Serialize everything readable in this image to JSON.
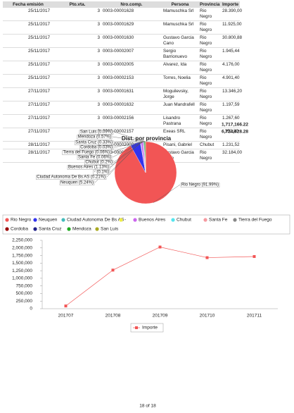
{
  "table": {
    "headers": [
      "Fecha emisión",
      "Pto.vta.",
      "Nro.comp.",
      "Persona",
      "Provincia",
      "Importe"
    ],
    "rows": [
      [
        "25/11/2017",
        "3",
        "0003-00001628",
        "Mamuschka Srl",
        "Rio Negro",
        "28.390,00"
      ],
      [
        "25/11/2017",
        "3",
        "0003-00001629",
        "Mamuschka Srl",
        "Rio Negro",
        "11.925,00"
      ],
      [
        "25/11/2017",
        "3",
        "0003-00001630",
        "Gustavo Garcia Cano",
        "Rio Negro",
        "30.800,88"
      ],
      [
        "25/11/2017",
        "3",
        "0003-00002007",
        "Sergio Barrionuevo",
        "Rio Negro",
        "1.945,44"
      ],
      [
        "25/11/2017",
        "3",
        "0003-00002005",
        "Alvarez, Ida",
        "Rio Negro",
        "4.176,00"
      ],
      [
        "25/11/2017",
        "3",
        "0003-00002153",
        "Torres, Noelia",
        "Rio Negro",
        "4.901,40"
      ],
      [
        "27/11/2017",
        "3",
        "0003-00001631",
        "Moguilevsky, Jorge",
        "Rio Negro",
        "13.346,20"
      ],
      [
        "27/11/2017",
        "3",
        "0003-00001632",
        "Juan Mandrafell",
        "Rio Negro",
        "1.197,59"
      ],
      [
        "27/11/2017",
        "3",
        "0003-00002156",
        "Lisandro Pastrana",
        "Rio Negro",
        "1.267,60"
      ],
      [
        "27/11/2017",
        "3",
        "0003-00002157",
        "Exeas SRL",
        "Rio Negro",
        "352,80"
      ],
      [
        "28/11/2017",
        "3",
        "0003-00002000",
        "Pisani, Gabriel",
        "Chubut",
        "1.231,52"
      ],
      [
        "28/11/2017",
        "3",
        "0003-00002158",
        "Gustavo Garcia Cano",
        "Rio Negro",
        "32.184,00"
      ]
    ],
    "totals": [
      "1,717,166.22",
      "6,724,628.28"
    ]
  },
  "chart_data": [
    {
      "type": "pie",
      "title": "Dist. por provincia",
      "categories": [
        "Rio Negro",
        "Neuquen",
        "Ciudad Autonoma De Bs AS",
        "-",
        "Buenos Aires",
        "Chubut",
        "Santa Fe",
        "Tierra del Fuego",
        "Cordoba",
        "Santa Cruz",
        "Mendoza",
        "San Luis"
      ],
      "values": [
        91.99,
        5.24,
        0.21,
        0.1,
        1.13,
        0.2,
        0.06,
        0.06,
        0.03,
        0.33,
        0.57,
        0.09
      ],
      "value_labels": [
        "Rio Negro (91.99%)",
        "Neuquen (5.24%)",
        "Ciudad Autonoma De Bs AS (0.21%)",
        "- (0.1%)",
        "Buenos Aires (1.13%)",
        "Chubut (0.2%)",
        "Santa Fe (0.06%)",
        "Tierra del Fuego (0.06%)",
        "Cordoba (0.03%)",
        "Santa Cruz (0.33%)",
        "Mendoza (0.57%)",
        "San Luis (0.09%)"
      ],
      "colors": [
        "#f25555",
        "#3333ee",
        "#44bbbb",
        "#eeee44",
        "#cc66ee",
        "#55e5ee",
        "#f59aa0",
        "#888888",
        "#990000",
        "#222288",
        "#22aa22",
        "#aaaa22"
      ]
    },
    {
      "type": "line",
      "categories": [
        "201707",
        "201708",
        "201709",
        "201710",
        "201711"
      ],
      "series": [
        {
          "name": "Importe",
          "color": "#f25555",
          "values": [
            90000,
            1270000,
            2030000,
            1680000,
            1717166.22
          ]
        }
      ],
      "ylim": [
        0,
        2250000
      ],
      "yticks": [
        0,
        {
          "value": 250000,
          "label": "250,000"
        },
        {
          "value": 500000,
          "label": "500,000"
        },
        {
          "value": 750000,
          "label": "750,000"
        },
        {
          "value": 1000000,
          "label": "1,000,000"
        },
        {
          "value": 1250000,
          "label": "1,250,000"
        },
        {
          "value": 1500000,
          "label": "1,500,000"
        },
        {
          "value": 1750000,
          "label": "1,750,000"
        },
        {
          "value": 2000000,
          "label": "2,000,000"
        },
        {
          "value": 2250000,
          "label": "2,250,000"
        }
      ]
    }
  ],
  "footer": "18 of 18"
}
